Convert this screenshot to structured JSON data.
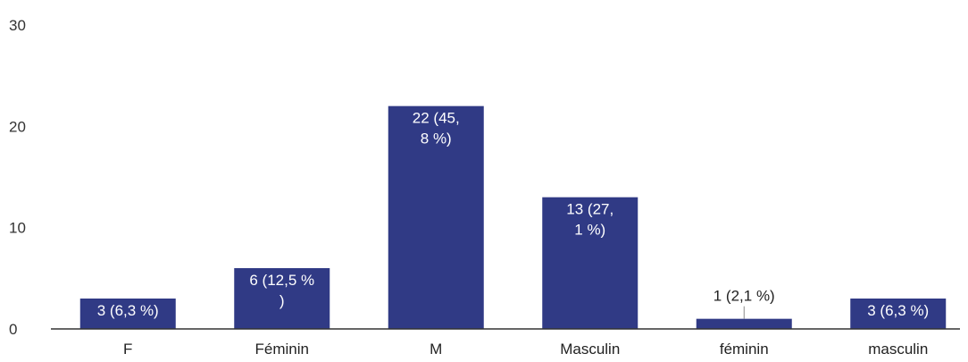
{
  "chart_data": {
    "type": "bar",
    "categories": [
      "F",
      "Féminin",
      "M",
      "Masculin",
      "féminin",
      "masculin"
    ],
    "values": [
      3,
      6,
      22,
      13,
      1,
      3
    ],
    "data_labels": [
      [
        "3 (6,3 %)"
      ],
      [
        "6 (12,5 %",
        ")"
      ],
      [
        "22 (45,",
        "8 %)"
      ],
      [
        "13 (27,",
        "1 %)"
      ],
      [
        "1 (2,1 %)"
      ],
      [
        "3 (6,3 %)"
      ]
    ],
    "yticks": [
      "0",
      "10",
      "20",
      "30"
    ],
    "ylim": [
      0,
      30
    ],
    "grid": false,
    "bar_color": "#303a85",
    "axis_color": "#333333"
  }
}
